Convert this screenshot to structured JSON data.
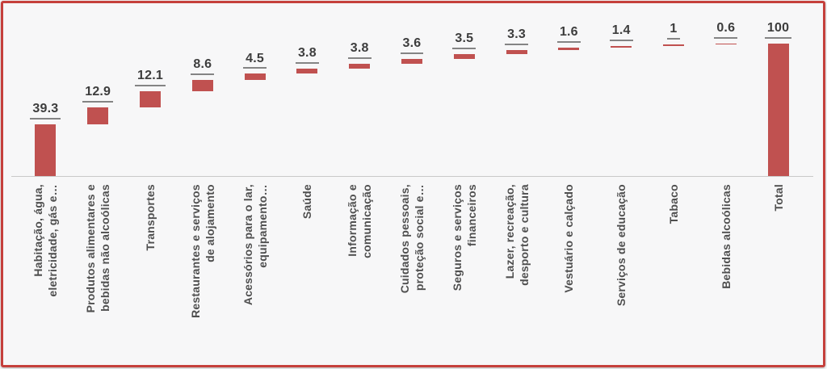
{
  "window": {
    "background_color": "#f7f7f8",
    "border_color": "#c5403c"
  },
  "chart_data": {
    "type": "bar",
    "subtype": "waterfall",
    "title": "",
    "xlabel": "",
    "ylabel": "",
    "grid": false,
    "legend": false,
    "ylim": [
      0,
      100
    ],
    "bar_color": "#c05150",
    "value_label_color": "#3d3d3d",
    "category_label_color": "#4f4f4f",
    "axis_color": "#c9c9c9",
    "categories": [
      "Habitação, água,\neletricidade, gás e…",
      "Produtos alimentares e\nbebidas não alcoólicas",
      "Transportes",
      "Restaurantes e serviços\nde alojamento",
      "Acessórios para o lar,\nequipamento…",
      "Saúde",
      "Informação e\ncomunicação",
      "Cuidados pessoais,\nproteção social e…",
      "Seguros e serviços\nfinanceiros",
      "Lazer, recreação,\ndesporto e cultura",
      "Vestuário e calçado",
      "Serviços de educação",
      "Tabaco",
      "Bebidas alcoólicas",
      "Total"
    ],
    "values": [
      39.3,
      12.9,
      12.1,
      8.6,
      4.5,
      3.8,
      3.8,
      3.6,
      3.5,
      3.3,
      1.6,
      1.4,
      1,
      0.6,
      100
    ],
    "value_labels": [
      "39.3",
      "12.9",
      "12.1",
      "8.6",
      "4.5",
      "3.8",
      "3.8",
      "3.6",
      "3.5",
      "3.3",
      "1.6",
      "1.4",
      "1",
      "0.6",
      "100"
    ],
    "is_total": [
      false,
      false,
      false,
      false,
      false,
      false,
      false,
      false,
      false,
      false,
      false,
      false,
      false,
      false,
      true
    ]
  }
}
